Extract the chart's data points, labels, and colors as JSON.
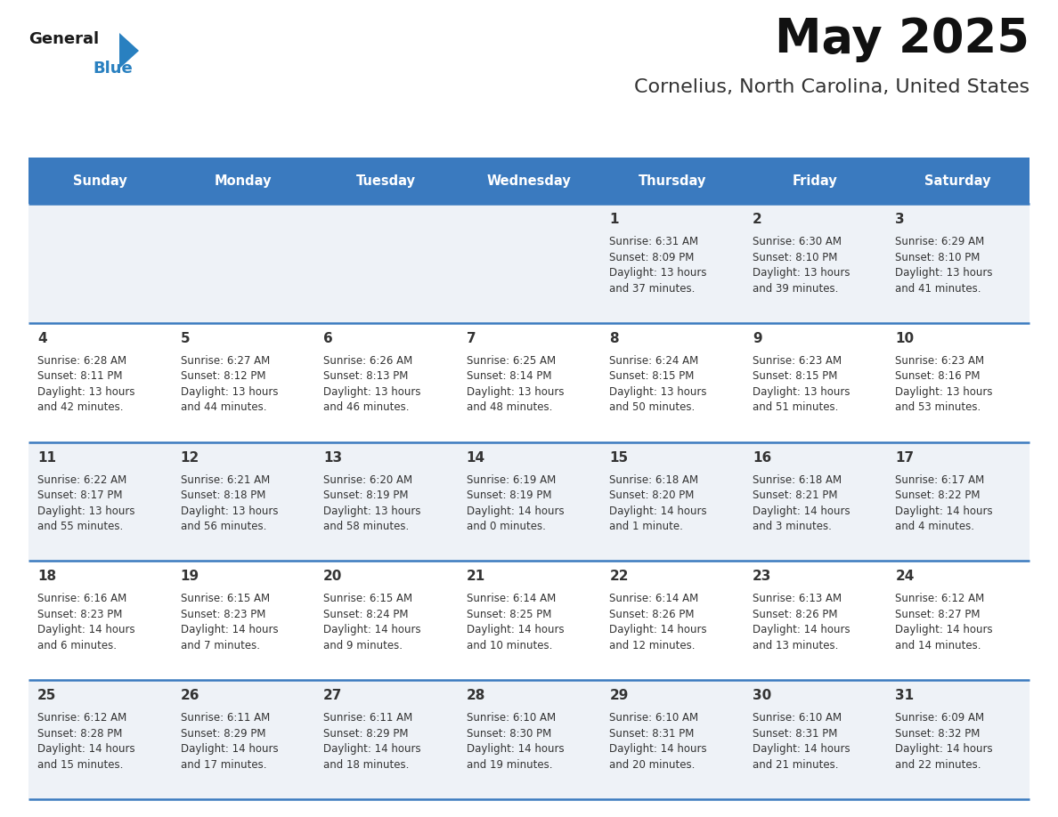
{
  "title": "May 2025",
  "subtitle": "Cornelius, North Carolina, United States",
  "days_of_week": [
    "Sunday",
    "Monday",
    "Tuesday",
    "Wednesday",
    "Thursday",
    "Friday",
    "Saturday"
  ],
  "header_bg": "#3a7abf",
  "header_text": "#ffffff",
  "row_bg_odd": "#eef2f7",
  "row_bg_even": "#ffffff",
  "divider_color": "#3a7abf",
  "cell_text_color": "#333333",
  "day_num_color": "#333333",
  "background": "#ffffff",
  "logo_general_color": "#1a1a1a",
  "logo_blue_color": "#2980c0",
  "calendar_data": [
    [
      null,
      null,
      null,
      null,
      {
        "day": 1,
        "sunrise": "6:31 AM",
        "sunset": "8:09 PM",
        "daylight": "13 hours",
        "daylight2": "and 37 minutes."
      },
      {
        "day": 2,
        "sunrise": "6:30 AM",
        "sunset": "8:10 PM",
        "daylight": "13 hours",
        "daylight2": "and 39 minutes."
      },
      {
        "day": 3,
        "sunrise": "6:29 AM",
        "sunset": "8:10 PM",
        "daylight": "13 hours",
        "daylight2": "and 41 minutes."
      }
    ],
    [
      {
        "day": 4,
        "sunrise": "6:28 AM",
        "sunset": "8:11 PM",
        "daylight": "13 hours",
        "daylight2": "and 42 minutes."
      },
      {
        "day": 5,
        "sunrise": "6:27 AM",
        "sunset": "8:12 PM",
        "daylight": "13 hours",
        "daylight2": "and 44 minutes."
      },
      {
        "day": 6,
        "sunrise": "6:26 AM",
        "sunset": "8:13 PM",
        "daylight": "13 hours",
        "daylight2": "and 46 minutes."
      },
      {
        "day": 7,
        "sunrise": "6:25 AM",
        "sunset": "8:14 PM",
        "daylight": "13 hours",
        "daylight2": "and 48 minutes."
      },
      {
        "day": 8,
        "sunrise": "6:24 AM",
        "sunset": "8:15 PM",
        "daylight": "13 hours",
        "daylight2": "and 50 minutes."
      },
      {
        "day": 9,
        "sunrise": "6:23 AM",
        "sunset": "8:15 PM",
        "daylight": "13 hours",
        "daylight2": "and 51 minutes."
      },
      {
        "day": 10,
        "sunrise": "6:23 AM",
        "sunset": "8:16 PM",
        "daylight": "13 hours",
        "daylight2": "and 53 minutes."
      }
    ],
    [
      {
        "day": 11,
        "sunrise": "6:22 AM",
        "sunset": "8:17 PM",
        "daylight": "13 hours",
        "daylight2": "and 55 minutes."
      },
      {
        "day": 12,
        "sunrise": "6:21 AM",
        "sunset": "8:18 PM",
        "daylight": "13 hours",
        "daylight2": "and 56 minutes."
      },
      {
        "day": 13,
        "sunrise": "6:20 AM",
        "sunset": "8:19 PM",
        "daylight": "13 hours",
        "daylight2": "and 58 minutes."
      },
      {
        "day": 14,
        "sunrise": "6:19 AM",
        "sunset": "8:19 PM",
        "daylight": "14 hours",
        "daylight2": "and 0 minutes."
      },
      {
        "day": 15,
        "sunrise": "6:18 AM",
        "sunset": "8:20 PM",
        "daylight": "14 hours",
        "daylight2": "and 1 minute."
      },
      {
        "day": 16,
        "sunrise": "6:18 AM",
        "sunset": "8:21 PM",
        "daylight": "14 hours",
        "daylight2": "and 3 minutes."
      },
      {
        "day": 17,
        "sunrise": "6:17 AM",
        "sunset": "8:22 PM",
        "daylight": "14 hours",
        "daylight2": "and 4 minutes."
      }
    ],
    [
      {
        "day": 18,
        "sunrise": "6:16 AM",
        "sunset": "8:23 PM",
        "daylight": "14 hours",
        "daylight2": "and 6 minutes."
      },
      {
        "day": 19,
        "sunrise": "6:15 AM",
        "sunset": "8:23 PM",
        "daylight": "14 hours",
        "daylight2": "and 7 minutes."
      },
      {
        "day": 20,
        "sunrise": "6:15 AM",
        "sunset": "8:24 PM",
        "daylight": "14 hours",
        "daylight2": "and 9 minutes."
      },
      {
        "day": 21,
        "sunrise": "6:14 AM",
        "sunset": "8:25 PM",
        "daylight": "14 hours",
        "daylight2": "and 10 minutes."
      },
      {
        "day": 22,
        "sunrise": "6:14 AM",
        "sunset": "8:26 PM",
        "daylight": "14 hours",
        "daylight2": "and 12 minutes."
      },
      {
        "day": 23,
        "sunrise": "6:13 AM",
        "sunset": "8:26 PM",
        "daylight": "14 hours",
        "daylight2": "and 13 minutes."
      },
      {
        "day": 24,
        "sunrise": "6:12 AM",
        "sunset": "8:27 PM",
        "daylight": "14 hours",
        "daylight2": "and 14 minutes."
      }
    ],
    [
      {
        "day": 25,
        "sunrise": "6:12 AM",
        "sunset": "8:28 PM",
        "daylight": "14 hours",
        "daylight2": "and 15 minutes."
      },
      {
        "day": 26,
        "sunrise": "6:11 AM",
        "sunset": "8:29 PM",
        "daylight": "14 hours",
        "daylight2": "and 17 minutes."
      },
      {
        "day": 27,
        "sunrise": "6:11 AM",
        "sunset": "8:29 PM",
        "daylight": "14 hours",
        "daylight2": "and 18 minutes."
      },
      {
        "day": 28,
        "sunrise": "6:10 AM",
        "sunset": "8:30 PM",
        "daylight": "14 hours",
        "daylight2": "and 19 minutes."
      },
      {
        "day": 29,
        "sunrise": "6:10 AM",
        "sunset": "8:31 PM",
        "daylight": "14 hours",
        "daylight2": "and 20 minutes."
      },
      {
        "day": 30,
        "sunrise": "6:10 AM",
        "sunset": "8:31 PM",
        "daylight": "14 hours",
        "daylight2": "and 21 minutes."
      },
      {
        "day": 31,
        "sunrise": "6:09 AM",
        "sunset": "8:32 PM",
        "daylight": "14 hours",
        "daylight2": "and 22 minutes."
      }
    ]
  ]
}
